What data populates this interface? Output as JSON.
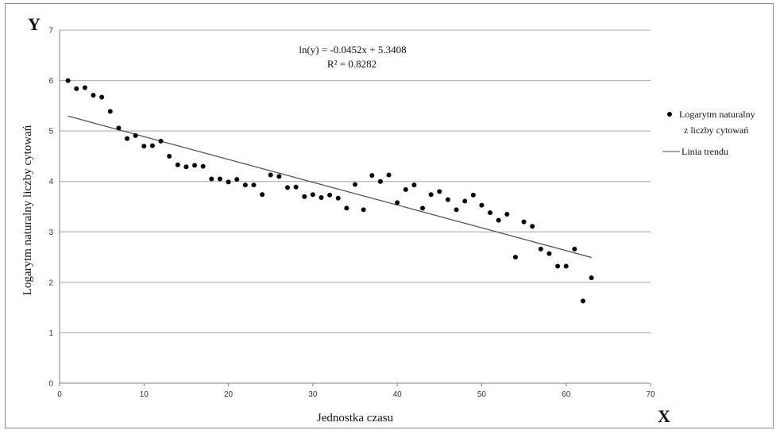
{
  "chart_data": {
    "type": "scatter",
    "xlabel": "Jednostka czasu",
    "ylabel": "Logarytm naturalny liczby cytowań",
    "x_axis_letter": "X",
    "y_axis_letter": "Y",
    "xlim": [
      0,
      70
    ],
    "ylim": [
      0,
      7
    ],
    "x_ticks": [
      "0",
      "10",
      "20",
      "30",
      "40",
      "50",
      "60",
      "70"
    ],
    "y_ticks": [
      "0",
      "1",
      "2",
      "3",
      "4",
      "5",
      "6",
      "7"
    ],
    "grid": "horizontal",
    "legend_position": "right",
    "equation": [
      "ln(y) = -0.0452x + 5.3408",
      "R² = 0.8282"
    ],
    "colors": {
      "points": "#000000",
      "trend": "#4a4a4a",
      "grid": "#a6a6a6"
    },
    "series": [
      {
        "name": "Logarytm naturalny z liczby cytowań",
        "legend_lines": [
          "Logarytm naturalny",
          "z liczby cytowań"
        ],
        "x": [
          1,
          2,
          3,
          4,
          5,
          6,
          7,
          8,
          9,
          10,
          11,
          12,
          13,
          14,
          15,
          16,
          17,
          18,
          19,
          20,
          21,
          22,
          23,
          24,
          25,
          26,
          27,
          28,
          29,
          30,
          31,
          32,
          33,
          34,
          35,
          36,
          37,
          38,
          39,
          40,
          41,
          42,
          43,
          44,
          45,
          46,
          47,
          48,
          49,
          50,
          51,
          52,
          53,
          54,
          55,
          56,
          57,
          58,
          59,
          60,
          61,
          62,
          63
        ],
        "y": [
          6.0,
          5.84,
          5.86,
          5.71,
          5.67,
          5.39,
          5.06,
          4.85,
          4.91,
          4.7,
          4.71,
          4.8,
          4.5,
          4.33,
          4.29,
          4.32,
          4.3,
          4.05,
          4.05,
          3.99,
          4.04,
          3.93,
          3.93,
          3.74,
          4.13,
          4.1,
          3.88,
          3.89,
          3.7,
          3.74,
          3.68,
          3.73,
          3.67,
          3.47,
          3.94,
          3.44,
          4.12,
          4.0,
          4.13,
          3.58,
          3.84,
          3.93,
          3.47,
          3.74,
          3.8,
          3.64,
          3.44,
          3.61,
          3.73,
          3.53,
          3.38,
          3.23,
          3.35,
          2.5,
          3.2,
          3.11,
          2.66,
          2.57,
          2.32,
          2.32,
          2.66,
          1.63,
          2.09
        ]
      },
      {
        "name": "Linia trendu",
        "type": "line",
        "x": [
          1,
          63
        ],
        "y": [
          5.2956,
          2.4932
        ]
      }
    ]
  }
}
